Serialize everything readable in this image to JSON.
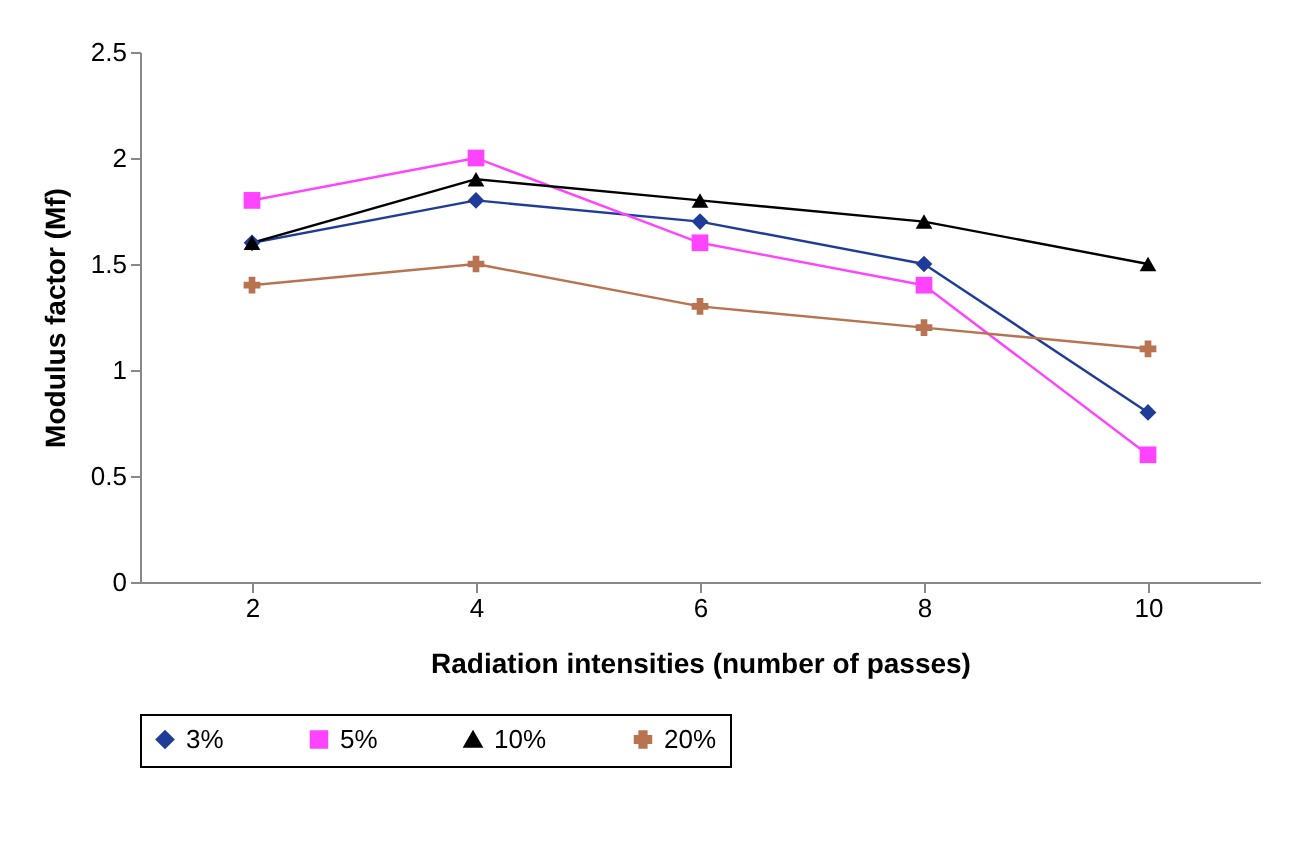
{
  "chart_data": {
    "type": "line",
    "xlabel": "Radiation intensities (number of passes)",
    "ylabel": "Modulus factor (Mf)",
    "categories": [
      "2",
      "4",
      "6",
      "8",
      "10"
    ],
    "series": [
      {
        "name": "3%",
        "color": "#1f3c99",
        "marker": "diamond",
        "values": [
          1.6,
          1.8,
          1.7,
          1.5,
          0.8
        ]
      },
      {
        "name": "5%",
        "color": "#ff44ff",
        "marker": "square",
        "values": [
          1.8,
          2.0,
          1.6,
          1.4,
          0.6
        ]
      },
      {
        "name": "10%",
        "color": "#000000",
        "marker": "triangle",
        "values": [
          1.6,
          1.9,
          1.8,
          1.7,
          1.5
        ]
      },
      {
        "name": "20%",
        "color": "#b87350",
        "marker": "cross",
        "values": [
          1.4,
          1.5,
          1.3,
          1.2,
          1.1
        ]
      }
    ],
    "ylim": [
      0,
      2.5
    ],
    "yticks": [
      0,
      0.5,
      1,
      1.5,
      2,
      2.5
    ],
    "grid": false,
    "legend": "bottom",
    "line_style": "solid"
  }
}
